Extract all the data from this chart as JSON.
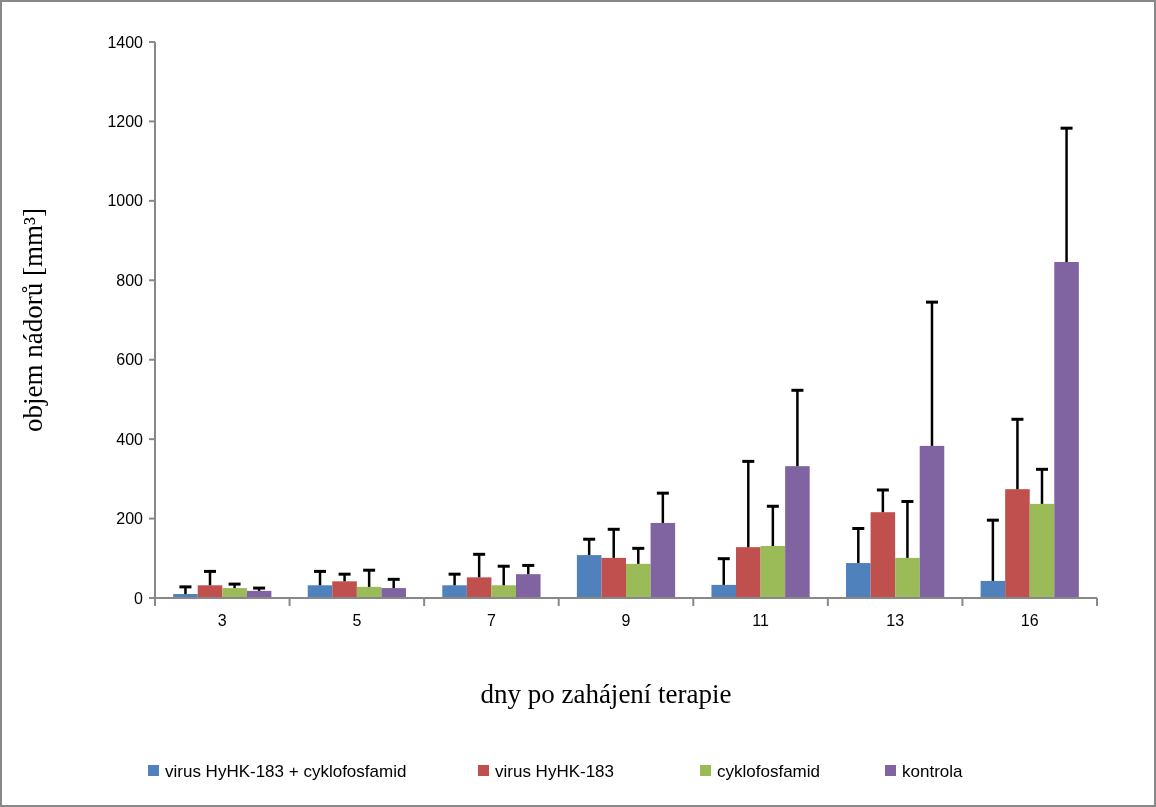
{
  "chart_data": {
    "type": "bar",
    "xlabel": "dny po zahájení terapie",
    "ylabel": "objem nádorů [mm³]",
    "categories": [
      "3",
      "5",
      "7",
      "9",
      "11",
      "13",
      "16"
    ],
    "ylim": [
      0,
      1400
    ],
    "yticks": [
      0,
      200,
      400,
      600,
      800,
      1000,
      1200,
      1400
    ],
    "grid": false,
    "legend": "bottom",
    "series": [
      {
        "name": "virus HyHK-183 + cyklofosfamid",
        "color": "#4f81bd",
        "values": [
          10,
          32,
          32,
          108,
          33,
          88,
          43
        ],
        "errors": [
          [
            10,
            28
          ],
          [
            32,
            67
          ],
          [
            32,
            60
          ],
          [
            108,
            148
          ],
          [
            33,
            99
          ],
          [
            88,
            175
          ],
          [
            43,
            196
          ]
        ]
      },
      {
        "name": "virus HyHK-183",
        "color": "#c0504d",
        "values": [
          32,
          42,
          52,
          101,
          128,
          216,
          274
        ],
        "errors": [
          [
            32,
            67
          ],
          [
            42,
            60
          ],
          [
            52,
            110
          ],
          [
            101,
            173
          ],
          [
            128,
            344
          ],
          [
            216,
            272
          ],
          [
            274,
            450
          ]
        ]
      },
      {
        "name": "cyklofosfamid",
        "color": "#9bbb59",
        "values": [
          25,
          28,
          32,
          86,
          131,
          101,
          237
        ],
        "errors": [
          [
            25,
            35
          ],
          [
            28,
            70
          ],
          [
            32,
            80
          ],
          [
            86,
            125
          ],
          [
            131,
            231
          ],
          [
            101,
            243
          ],
          [
            237,
            324
          ]
        ]
      },
      {
        "name": "kontrola",
        "color": "#8064a2",
        "values": [
          18,
          25,
          60,
          189,
          332,
          383,
          846
        ],
        "errors": [
          [
            18,
            25
          ],
          [
            25,
            47
          ],
          [
            60,
            82
          ],
          [
            189,
            264
          ],
          [
            332,
            523
          ],
          [
            383,
            745
          ],
          [
            846,
            1183
          ]
        ]
      }
    ]
  }
}
